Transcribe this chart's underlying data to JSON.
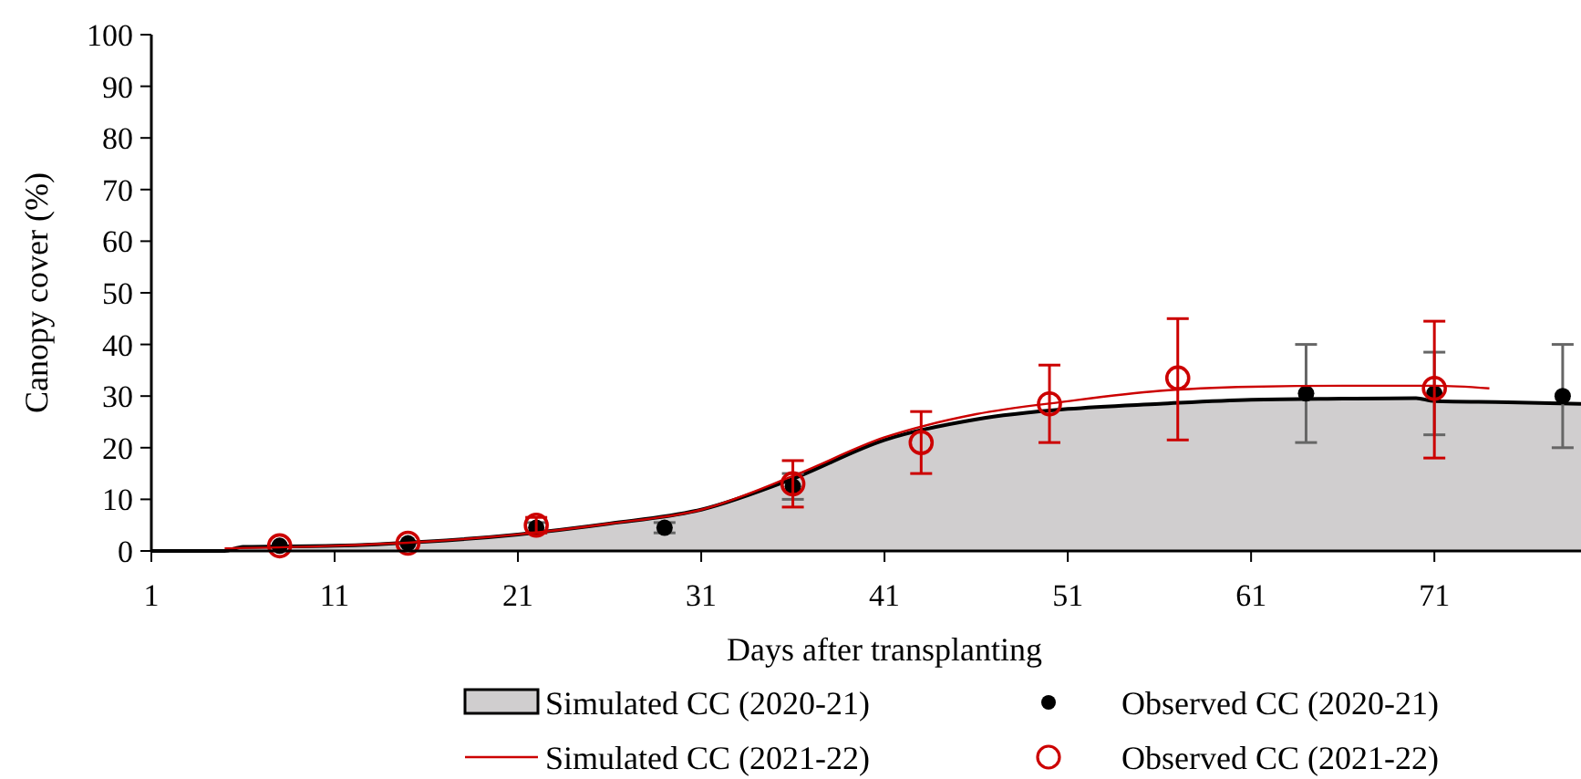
{
  "chart_data": {
    "type": "line",
    "xlabel": "Days after transplanting",
    "ylabel": "Canopy cover (%)",
    "xlim": [
      1,
      79
    ],
    "xticks": [
      1,
      11,
      21,
      31,
      41,
      51,
      61,
      71
    ],
    "ylim": [
      0,
      100
    ],
    "yticks": [
      0,
      10,
      20,
      30,
      40,
      50,
      60,
      70,
      80,
      90,
      100
    ],
    "grid": false,
    "legend": "bottom",
    "series": [
      {
        "name": "Simulated CC (2020-21)",
        "type": "area",
        "color": "#d0cecf",
        "x": [
          1,
          5,
          6,
          11,
          16,
          21,
          26,
          31,
          36,
          41,
          46,
          51,
          56,
          61,
          66,
          70,
          71,
          75,
          79
        ],
        "values": [
          0,
          0,
          0.8,
          1,
          1.8,
          3.2,
          5.3,
          8,
          14,
          21.5,
          25.5,
          27.5,
          28.5,
          29.3,
          29.5,
          29.6,
          29,
          28.8,
          28.5
        ]
      },
      {
        "name": "Observed CC (2020-21)",
        "type": "scatter",
        "marker": "circle",
        "color": "#000000",
        "x": [
          8,
          15,
          22,
          29,
          36,
          64,
          71,
          78
        ],
        "values": [
          1,
          1.5,
          4.5,
          4.5,
          12.5,
          30.5,
          30.5,
          30
        ],
        "errors": [
          null,
          null,
          [
            3.5,
            5.5
          ],
          [
            3.5,
            5.5
          ],
          [
            10,
            15
          ],
          [
            21,
            40
          ],
          [
            22.5,
            38.5
          ],
          [
            20,
            40
          ]
        ]
      },
      {
        "name": "Simulated CC (2021-22)",
        "color": "#cc0000",
        "x": [
          5,
          11,
          16,
          21,
          26,
          31,
          36,
          41,
          46,
          51,
          56,
          61,
          66,
          71,
          74
        ],
        "values": [
          0.5,
          1,
          1.8,
          3.2,
          5.3,
          8,
          14.5,
          22,
          26.5,
          29,
          31,
          31.8,
          32,
          32,
          31.5
        ]
      },
      {
        "name": "Observed CC (2021-22)",
        "type": "scatter",
        "marker": "open_circle",
        "color": "#cc0000",
        "x": [
          8,
          15,
          22,
          36,
          43,
          50,
          57,
          71
        ],
        "values": [
          1,
          1.5,
          5,
          13,
          21,
          28.5,
          33.5,
          31.5
        ],
        "errors": [
          null,
          null,
          [
            3.5,
            6.5
          ],
          [
            8.5,
            17.5
          ],
          [
            15,
            27
          ],
          [
            21,
            36
          ],
          [
            21.5,
            45
          ],
          [
            18,
            44.5
          ]
        ]
      }
    ]
  }
}
